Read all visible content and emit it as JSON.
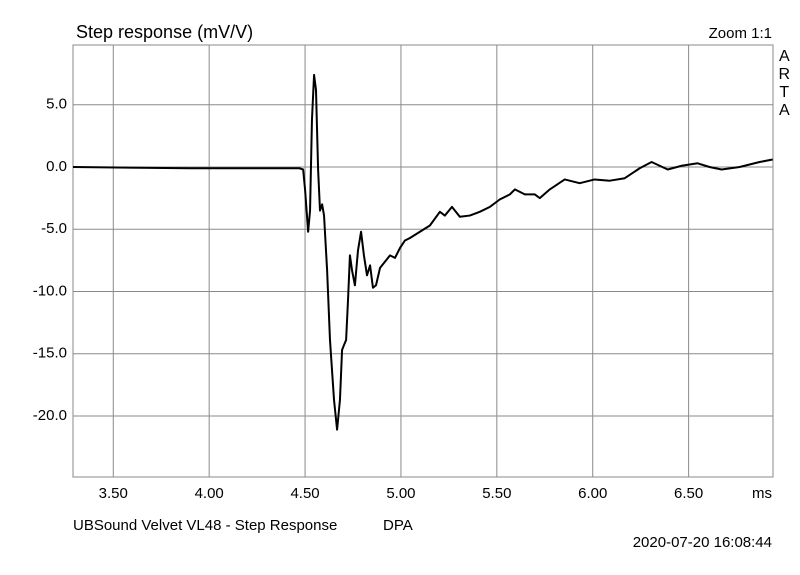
{
  "chart_data": {
    "type": "line",
    "title": "Step response (mV/V)",
    "zoom_label": "Zoom 1:1",
    "brand": "ARTA",
    "x_label": "ms",
    "caption": "UBSound Velvet VL48 - Step Response",
    "caption_right": "DPA",
    "timestamp": "2020-07-20  16:08:44",
    "color": "#000000",
    "grid": true,
    "xlim": [
      3.29,
      6.94
    ],
    "ylim": [
      -24.9,
      9.8
    ],
    "xticks": [
      {
        "value": 3.5,
        "label": "3.50"
      },
      {
        "value": 4,
        "label": "4.00"
      },
      {
        "value": 4.5,
        "label": "4.50"
      },
      {
        "value": 5,
        "label": "5.00"
      },
      {
        "value": 5.5,
        "label": "5.50"
      },
      {
        "value": 6,
        "label": "6.00"
      },
      {
        "value": 6.5,
        "label": "6.50"
      }
    ],
    "yticks": [
      {
        "value": 5,
        "label": "5.0"
      },
      {
        "value": 0,
        "label": "0.0"
      },
      {
        "value": -5,
        "label": "-5.0"
      },
      {
        "value": -10,
        "label": "-10.0"
      },
      {
        "value": -15,
        "label": "-15.0"
      },
      {
        "value": -20,
        "label": "-20.0"
      }
    ],
    "x": [
      3.29,
      3.9,
      4.47,
      4.49,
      4.5,
      4.516,
      4.526,
      4.536,
      4.547,
      4.557,
      4.568,
      4.578,
      4.589,
      4.599,
      4.615,
      4.63,
      4.651,
      4.667,
      4.682,
      4.693,
      4.703,
      4.714,
      4.724,
      4.734,
      4.745,
      4.76,
      4.776,
      4.792,
      4.807,
      4.823,
      4.839,
      4.854,
      4.87,
      4.891,
      4.917,
      4.943,
      4.969,
      4.995,
      5.021,
      5.047,
      5.099,
      5.151,
      5.203,
      5.229,
      5.266,
      5.307,
      5.359,
      5.411,
      5.464,
      5.516,
      5.568,
      5.594,
      5.646,
      5.698,
      5.724,
      5.776,
      5.854,
      5.932,
      6.01,
      6.089,
      6.167,
      6.245,
      6.307,
      6.391,
      6.464,
      6.547,
      6.609,
      6.672,
      6.766,
      6.87,
      6.938
    ],
    "values": [
      0,
      -0.1,
      -0.1,
      -0.2,
      -1.8,
      -5.2,
      -3.5,
      3.8,
      7.4,
      6.2,
      -0.2,
      -3.5,
      -3.0,
      -3.9,
      -8.3,
      -13.9,
      -18.7,
      -21.1,
      -18.7,
      -14.7,
      -14.3,
      -13.9,
      -10.7,
      -7.1,
      -8.3,
      -9.5,
      -6.7,
      -5.2,
      -7.1,
      -8.7,
      -7.9,
      -9.7,
      -9.5,
      -8.1,
      -7.6,
      -7.1,
      -7.3,
      -6.5,
      -5.9,
      -5.7,
      -5.2,
      -4.7,
      -3.6,
      -3.9,
      -3.2,
      -4.0,
      -3.9,
      -3.6,
      -3.2,
      -2.6,
      -2.2,
      -1.8,
      -2.2,
      -2.2,
      -2.5,
      -1.8,
      -1.0,
      -1.3,
      -1.0,
      -1.1,
      -0.9,
      -0.1,
      0.4,
      -0.2,
      0.1,
      0.3,
      0,
      -0.2,
      0,
      0.4,
      0.6
    ]
  }
}
